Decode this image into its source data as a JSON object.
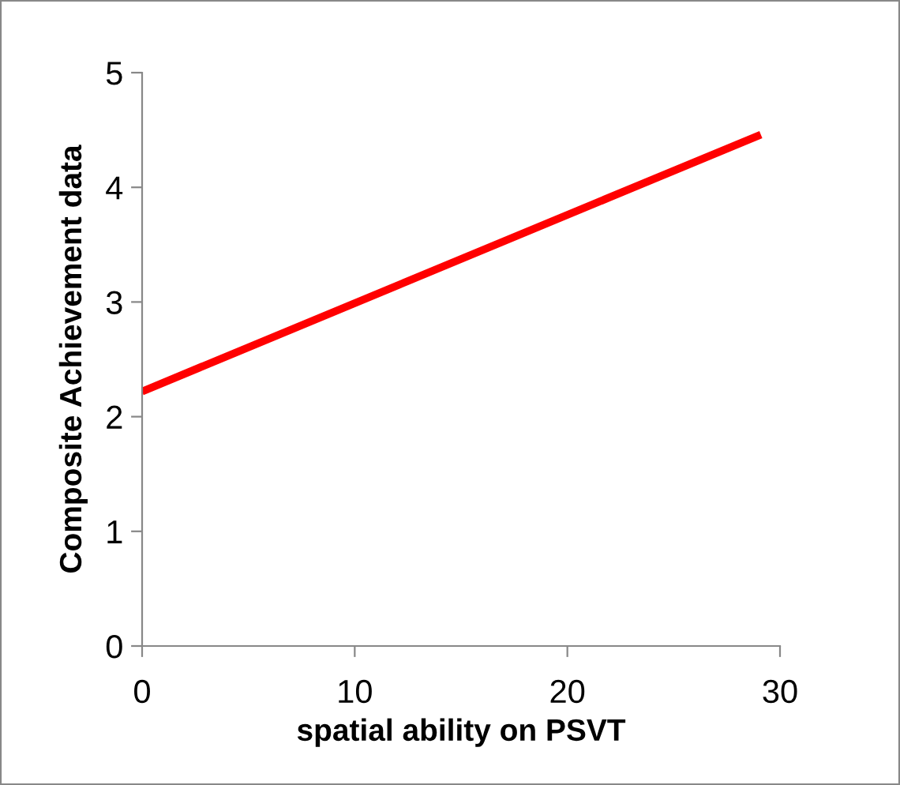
{
  "chart_data": {
    "type": "line",
    "xlabel": "spatial ability on PSVT",
    "ylabel": "Composite Achievement data",
    "x": [
      0,
      29.1
    ],
    "series": [
      {
        "color": "#ff0000",
        "values": [
          2.22,
          4.46
        ]
      }
    ],
    "xlim": [
      0,
      30
    ],
    "xticks": [
      0,
      10,
      20,
      30
    ],
    "ylim": [
      0,
      5
    ],
    "yticks": [
      0,
      1,
      2,
      3,
      4,
      5
    ],
    "grid": false,
    "legend": false,
    "marker": "none",
    "line_style": "solid"
  }
}
